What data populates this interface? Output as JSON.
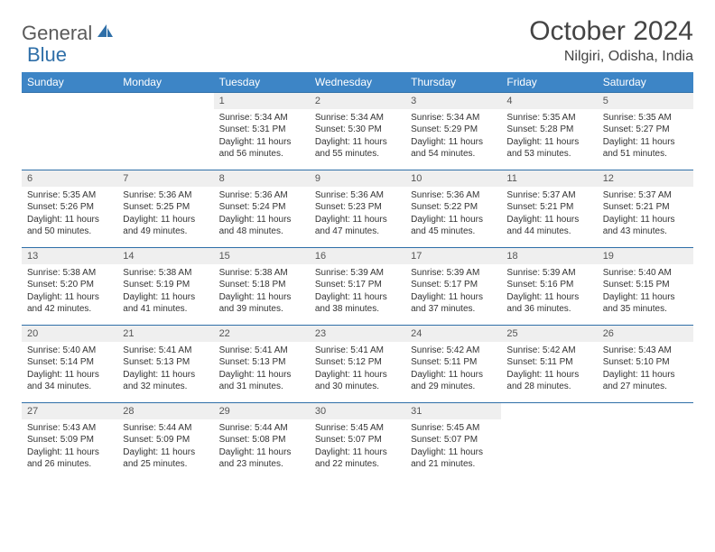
{
  "logo": {
    "text1": "General",
    "text2": "Blue"
  },
  "title": "October 2024",
  "location": "Nilgiri, Odisha, India",
  "colors": {
    "header_bg": "#3d85c6",
    "header_border": "#2f6fa8",
    "daynum_bg": "#efefef",
    "text": "#333333",
    "logo_gray": "#5a5a5a",
    "logo_blue": "#2f6fa8"
  },
  "typography": {
    "title_fontsize": 30,
    "location_fontsize": 16,
    "header_fontsize": 12,
    "daynum_fontsize": 11,
    "cell_fontsize": 10
  },
  "day_headers": [
    "Sunday",
    "Monday",
    "Tuesday",
    "Wednesday",
    "Thursday",
    "Friday",
    "Saturday"
  ],
  "weeks": [
    {
      "nums": [
        "",
        "",
        "1",
        "2",
        "3",
        "4",
        "5"
      ],
      "cells": [
        null,
        null,
        {
          "sunrise": "Sunrise: 5:34 AM",
          "sunset": "Sunset: 5:31 PM",
          "daylight": "Daylight: 11 hours and 56 minutes."
        },
        {
          "sunrise": "Sunrise: 5:34 AM",
          "sunset": "Sunset: 5:30 PM",
          "daylight": "Daylight: 11 hours and 55 minutes."
        },
        {
          "sunrise": "Sunrise: 5:34 AM",
          "sunset": "Sunset: 5:29 PM",
          "daylight": "Daylight: 11 hours and 54 minutes."
        },
        {
          "sunrise": "Sunrise: 5:35 AM",
          "sunset": "Sunset: 5:28 PM",
          "daylight": "Daylight: 11 hours and 53 minutes."
        },
        {
          "sunrise": "Sunrise: 5:35 AM",
          "sunset": "Sunset: 5:27 PM",
          "daylight": "Daylight: 11 hours and 51 minutes."
        }
      ]
    },
    {
      "nums": [
        "6",
        "7",
        "8",
        "9",
        "10",
        "11",
        "12"
      ],
      "cells": [
        {
          "sunrise": "Sunrise: 5:35 AM",
          "sunset": "Sunset: 5:26 PM",
          "daylight": "Daylight: 11 hours and 50 minutes."
        },
        {
          "sunrise": "Sunrise: 5:36 AM",
          "sunset": "Sunset: 5:25 PM",
          "daylight": "Daylight: 11 hours and 49 minutes."
        },
        {
          "sunrise": "Sunrise: 5:36 AM",
          "sunset": "Sunset: 5:24 PM",
          "daylight": "Daylight: 11 hours and 48 minutes."
        },
        {
          "sunrise": "Sunrise: 5:36 AM",
          "sunset": "Sunset: 5:23 PM",
          "daylight": "Daylight: 11 hours and 47 minutes."
        },
        {
          "sunrise": "Sunrise: 5:36 AM",
          "sunset": "Sunset: 5:22 PM",
          "daylight": "Daylight: 11 hours and 45 minutes."
        },
        {
          "sunrise": "Sunrise: 5:37 AM",
          "sunset": "Sunset: 5:21 PM",
          "daylight": "Daylight: 11 hours and 44 minutes."
        },
        {
          "sunrise": "Sunrise: 5:37 AM",
          "sunset": "Sunset: 5:21 PM",
          "daylight": "Daylight: 11 hours and 43 minutes."
        }
      ]
    },
    {
      "nums": [
        "13",
        "14",
        "15",
        "16",
        "17",
        "18",
        "19"
      ],
      "cells": [
        {
          "sunrise": "Sunrise: 5:38 AM",
          "sunset": "Sunset: 5:20 PM",
          "daylight": "Daylight: 11 hours and 42 minutes."
        },
        {
          "sunrise": "Sunrise: 5:38 AM",
          "sunset": "Sunset: 5:19 PM",
          "daylight": "Daylight: 11 hours and 41 minutes."
        },
        {
          "sunrise": "Sunrise: 5:38 AM",
          "sunset": "Sunset: 5:18 PM",
          "daylight": "Daylight: 11 hours and 39 minutes."
        },
        {
          "sunrise": "Sunrise: 5:39 AM",
          "sunset": "Sunset: 5:17 PM",
          "daylight": "Daylight: 11 hours and 38 minutes."
        },
        {
          "sunrise": "Sunrise: 5:39 AM",
          "sunset": "Sunset: 5:17 PM",
          "daylight": "Daylight: 11 hours and 37 minutes."
        },
        {
          "sunrise": "Sunrise: 5:39 AM",
          "sunset": "Sunset: 5:16 PM",
          "daylight": "Daylight: 11 hours and 36 minutes."
        },
        {
          "sunrise": "Sunrise: 5:40 AM",
          "sunset": "Sunset: 5:15 PM",
          "daylight": "Daylight: 11 hours and 35 minutes."
        }
      ]
    },
    {
      "nums": [
        "20",
        "21",
        "22",
        "23",
        "24",
        "25",
        "26"
      ],
      "cells": [
        {
          "sunrise": "Sunrise: 5:40 AM",
          "sunset": "Sunset: 5:14 PM",
          "daylight": "Daylight: 11 hours and 34 minutes."
        },
        {
          "sunrise": "Sunrise: 5:41 AM",
          "sunset": "Sunset: 5:13 PM",
          "daylight": "Daylight: 11 hours and 32 minutes."
        },
        {
          "sunrise": "Sunrise: 5:41 AM",
          "sunset": "Sunset: 5:13 PM",
          "daylight": "Daylight: 11 hours and 31 minutes."
        },
        {
          "sunrise": "Sunrise: 5:41 AM",
          "sunset": "Sunset: 5:12 PM",
          "daylight": "Daylight: 11 hours and 30 minutes."
        },
        {
          "sunrise": "Sunrise: 5:42 AM",
          "sunset": "Sunset: 5:11 PM",
          "daylight": "Daylight: 11 hours and 29 minutes."
        },
        {
          "sunrise": "Sunrise: 5:42 AM",
          "sunset": "Sunset: 5:11 PM",
          "daylight": "Daylight: 11 hours and 28 minutes."
        },
        {
          "sunrise": "Sunrise: 5:43 AM",
          "sunset": "Sunset: 5:10 PM",
          "daylight": "Daylight: 11 hours and 27 minutes."
        }
      ]
    },
    {
      "nums": [
        "27",
        "28",
        "29",
        "30",
        "31",
        "",
        ""
      ],
      "cells": [
        {
          "sunrise": "Sunrise: 5:43 AM",
          "sunset": "Sunset: 5:09 PM",
          "daylight": "Daylight: 11 hours and 26 minutes."
        },
        {
          "sunrise": "Sunrise: 5:44 AM",
          "sunset": "Sunset: 5:09 PM",
          "daylight": "Daylight: 11 hours and 25 minutes."
        },
        {
          "sunrise": "Sunrise: 5:44 AM",
          "sunset": "Sunset: 5:08 PM",
          "daylight": "Daylight: 11 hours and 23 minutes."
        },
        {
          "sunrise": "Sunrise: 5:45 AM",
          "sunset": "Sunset: 5:07 PM",
          "daylight": "Daylight: 11 hours and 22 minutes."
        },
        {
          "sunrise": "Sunrise: 5:45 AM",
          "sunset": "Sunset: 5:07 PM",
          "daylight": "Daylight: 11 hours and 21 minutes."
        },
        null,
        null
      ]
    }
  ]
}
